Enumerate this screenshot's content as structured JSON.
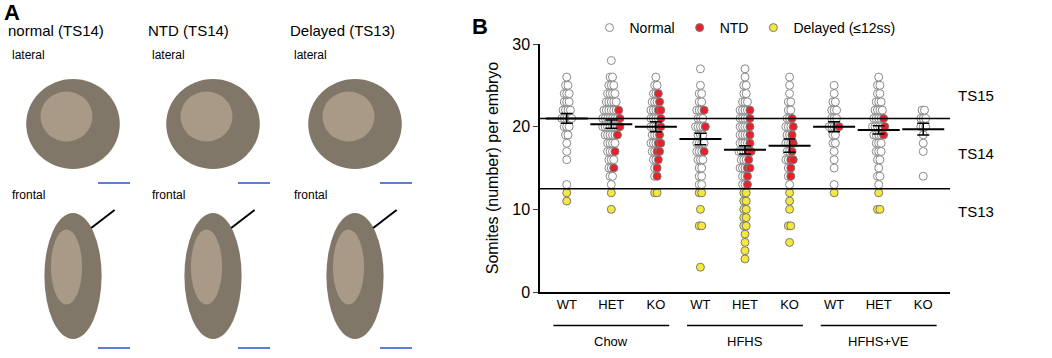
{
  "panel_a": {
    "label": "A",
    "columns": [
      {
        "title": "normal (TS14)",
        "views": [
          "lateral",
          "frontal"
        ]
      },
      {
        "title": "NTD (TS14)",
        "views": [
          "lateral",
          "frontal"
        ]
      },
      {
        "title": "Delayed (TS13)",
        "views": [
          "lateral",
          "frontal"
        ]
      }
    ]
  },
  "chart_data": {
    "type": "scatter",
    "panel_label": "B",
    "y_label": "Somites (number) per embryo",
    "categories": [
      "WT",
      "HET",
      "KO",
      "WT",
      "HET",
      "KO",
      "WT",
      "HET",
      "KO"
    ],
    "group": [
      "Chow",
      "Chow",
      "Chow",
      "HFHS",
      "HFHS",
      "HFHS",
      "HFHS+VE",
      "HFHS+VE",
      "HFHS+VE"
    ],
    "ylim": [
      0,
      30
    ],
    "yticks": [
      0,
      10,
      20,
      30
    ],
    "grid": false,
    "legend": "top",
    "series": [
      {
        "name": "Normal",
        "color": "#ffffff",
        "marker": "circle",
        "values": [
          [
            26,
            25,
            25,
            24,
            24,
            24,
            23,
            23,
            23,
            22,
            22,
            22,
            22,
            21,
            21,
            21,
            21,
            21,
            20,
            20,
            20,
            19,
            19,
            18,
            17,
            16,
            13
          ],
          [
            28,
            26,
            26,
            25,
            25,
            25,
            24,
            24,
            24,
            24,
            23,
            23,
            23,
            23,
            23,
            22,
            22,
            22,
            22,
            22,
            22,
            21,
            21,
            21,
            21,
            21,
            21,
            21,
            20,
            20,
            20,
            20,
            20,
            20,
            20,
            19,
            19,
            19,
            19,
            19,
            18,
            18,
            18,
            18,
            17,
            17,
            17,
            16,
            16,
            16,
            15,
            15,
            14,
            14,
            13
          ],
          [
            26,
            25,
            25,
            24,
            24,
            23,
            23,
            23,
            22,
            22,
            22,
            21,
            21,
            21,
            21,
            20,
            20,
            20,
            20,
            19,
            19,
            19,
            18,
            18,
            18,
            17,
            17,
            16,
            16,
            15,
            14
          ],
          [
            27,
            25,
            24,
            24,
            23,
            23,
            22,
            22,
            22,
            21,
            21,
            21,
            20,
            20,
            20,
            20,
            19,
            19,
            19,
            18,
            18,
            18,
            18,
            17,
            17,
            17,
            16,
            16,
            16,
            15,
            15,
            14,
            14,
            13,
            13
          ],
          [
            27,
            26,
            25,
            25,
            24,
            24,
            23,
            23,
            23,
            22,
            22,
            22,
            22,
            21,
            21,
            21,
            21,
            20,
            20,
            20,
            20,
            19,
            19,
            19,
            19,
            18,
            18,
            18,
            18,
            17,
            17,
            17,
            17,
            16,
            16,
            16,
            15,
            15,
            15,
            14,
            14,
            13,
            13
          ],
          [
            26,
            25,
            24,
            23,
            23,
            22,
            22,
            21,
            21,
            20,
            20,
            20,
            19,
            19,
            18,
            18,
            18,
            17,
            17,
            16,
            16,
            15,
            14,
            13
          ],
          [
            25,
            24,
            23,
            23,
            22,
            22,
            22,
            21,
            21,
            21,
            20,
            20,
            20,
            20,
            19,
            19,
            18,
            18,
            17,
            16,
            15,
            13
          ],
          [
            26,
            25,
            25,
            24,
            24,
            23,
            23,
            23,
            22,
            22,
            22,
            22,
            21,
            21,
            21,
            21,
            20,
            20,
            20,
            20,
            20,
            19,
            19,
            19,
            19,
            18,
            18,
            18,
            17,
            17,
            17,
            16,
            16,
            15,
            14,
            14,
            13
          ],
          [
            22,
            22,
            21,
            21,
            21,
            20,
            20,
            20,
            19,
            18,
            17,
            14
          ]
        ]
      },
      {
        "name": "NTD",
        "color": "#e8202a",
        "marker": "circle",
        "values": [
          [],
          [
            22,
            21,
            20,
            19,
            17,
            15
          ],
          [
            24,
            23,
            22,
            22,
            21,
            20,
            19,
            18,
            18,
            17,
            17,
            16,
            15,
            14
          ],
          [
            22,
            20,
            17
          ],
          [
            22,
            21,
            20,
            19,
            18,
            17,
            17,
            16,
            15,
            15,
            14,
            13
          ],
          [
            21,
            20,
            19,
            18,
            17,
            16,
            16,
            15,
            14
          ],
          [
            20
          ],
          [
            21,
            20,
            19
          ],
          []
        ]
      },
      {
        "name": "Delayed (≤12ss)",
        "color": "#f3e83b",
        "marker": "circle",
        "values": [
          [
            12,
            11
          ],
          [
            12,
            10
          ],
          [
            12,
            12
          ],
          [
            12,
            12,
            10,
            8,
            8,
            3
          ],
          [
            12,
            12,
            11,
            11,
            10,
            10,
            9,
            9,
            8,
            8,
            7,
            6,
            5,
            4
          ],
          [
            12,
            11,
            10,
            8,
            8,
            6
          ],
          [
            12
          ],
          [
            12,
            10,
            10
          ],
          []
        ]
      }
    ],
    "mean": [
      21.0,
      20.3,
      20.0,
      18.5,
      17.2,
      17.7,
      20.0,
      19.6,
      19.7
    ],
    "error": [
      0.6,
      0.5,
      0.6,
      0.7,
      0.5,
      0.8,
      0.6,
      0.5,
      0.7
    ],
    "reference_lines": [
      21,
      12.5
    ],
    "stage_labels": [
      "TS15",
      "TS14",
      "TS13"
    ]
  }
}
